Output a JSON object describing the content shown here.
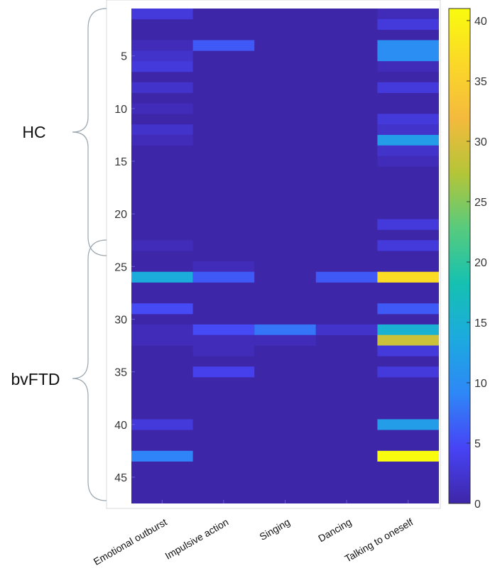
{
  "chart_data": {
    "type": "heatmap",
    "categories": [
      "Emotional outburst",
      "Impulsive action",
      "Singing",
      "Dancing",
      "Talking to oneself"
    ],
    "rows": 47,
    "y_ticks": [
      5,
      10,
      15,
      20,
      25,
      30,
      35,
      40,
      45
    ],
    "colorbar": {
      "min": 0,
      "max": 41,
      "ticks": [
        0,
        5,
        10,
        15,
        20,
        25,
        30,
        35,
        40
      ]
    },
    "colormap": [
      "#3e26a8",
      "#4743f5",
      "#2e87f7",
      "#1caadf",
      "#15c1b1",
      "#57cb7e",
      "#b4c538",
      "#f4ba3d",
      "#fbd828",
      "#f9fb0e"
    ],
    "background_color": "#3e26a8",
    "groups": [
      {
        "label": "HC",
        "row_start": 1,
        "row_end": 23
      },
      {
        "label": "bvFTD",
        "row_start": 24,
        "row_end": 47
      }
    ],
    "cells": [
      {
        "row": 1,
        "col": 0,
        "value": 3
      },
      {
        "row": 4,
        "col": 0,
        "value": 1
      },
      {
        "row": 5,
        "col": 0,
        "value": 2
      },
      {
        "row": 6,
        "col": 0,
        "value": 3
      },
      {
        "row": 8,
        "col": 0,
        "value": 2
      },
      {
        "row": 10,
        "col": 0,
        "value": 1
      },
      {
        "row": 12,
        "col": 0,
        "value": 2
      },
      {
        "row": 13,
        "col": 0,
        "value": 1
      },
      {
        "row": 23,
        "col": 0,
        "value": 1
      },
      {
        "row": 26,
        "col": 0,
        "value": 14
      },
      {
        "row": 29,
        "col": 0,
        "value": 5
      },
      {
        "row": 31,
        "col": 0,
        "value": 1
      },
      {
        "row": 32,
        "col": 0,
        "value": 1
      },
      {
        "row": 40,
        "col": 0,
        "value": 3
      },
      {
        "row": 43,
        "col": 0,
        "value": 9
      },
      {
        "row": 4,
        "col": 1,
        "value": 6
      },
      {
        "row": 25,
        "col": 1,
        "value": 1
      },
      {
        "row": 26,
        "col": 1,
        "value": 6
      },
      {
        "row": 31,
        "col": 1,
        "value": 5
      },
      {
        "row": 32,
        "col": 1,
        "value": 1
      },
      {
        "row": 33,
        "col": 1,
        "value": 1
      },
      {
        "row": 35,
        "col": 1,
        "value": 4
      },
      {
        "row": 31,
        "col": 2,
        "value": 8
      },
      {
        "row": 32,
        "col": 2,
        "value": 1
      },
      {
        "row": 26,
        "col": 3,
        "value": 6
      },
      {
        "row": 31,
        "col": 3,
        "value": 2
      },
      {
        "row": 1,
        "col": 4,
        "value": 1
      },
      {
        "row": 2,
        "col": 4,
        "value": 3
      },
      {
        "row": 4,
        "col": 4,
        "value": 10
      },
      {
        "row": 5,
        "col": 4,
        "value": 10
      },
      {
        "row": 6,
        "col": 4,
        "value": 1
      },
      {
        "row": 8,
        "col": 4,
        "value": 3
      },
      {
        "row": 11,
        "col": 4,
        "value": 3
      },
      {
        "row": 12,
        "col": 4,
        "value": 2
      },
      {
        "row": 13,
        "col": 4,
        "value": 12
      },
      {
        "row": 14,
        "col": 4,
        "value": 2
      },
      {
        "row": 15,
        "col": 4,
        "value": 1
      },
      {
        "row": 21,
        "col": 4,
        "value": 3
      },
      {
        "row": 23,
        "col": 4,
        "value": 3
      },
      {
        "row": 26,
        "col": 4,
        "value": 37
      },
      {
        "row": 29,
        "col": 4,
        "value": 6
      },
      {
        "row": 31,
        "col": 4,
        "value": 15
      },
      {
        "row": 32,
        "col": 4,
        "value": 29
      },
      {
        "row": 33,
        "col": 4,
        "value": 3
      },
      {
        "row": 35,
        "col": 4,
        "value": 3
      },
      {
        "row": 40,
        "col": 4,
        "value": 12
      },
      {
        "row": 43,
        "col": 4,
        "value": 41
      }
    ]
  }
}
